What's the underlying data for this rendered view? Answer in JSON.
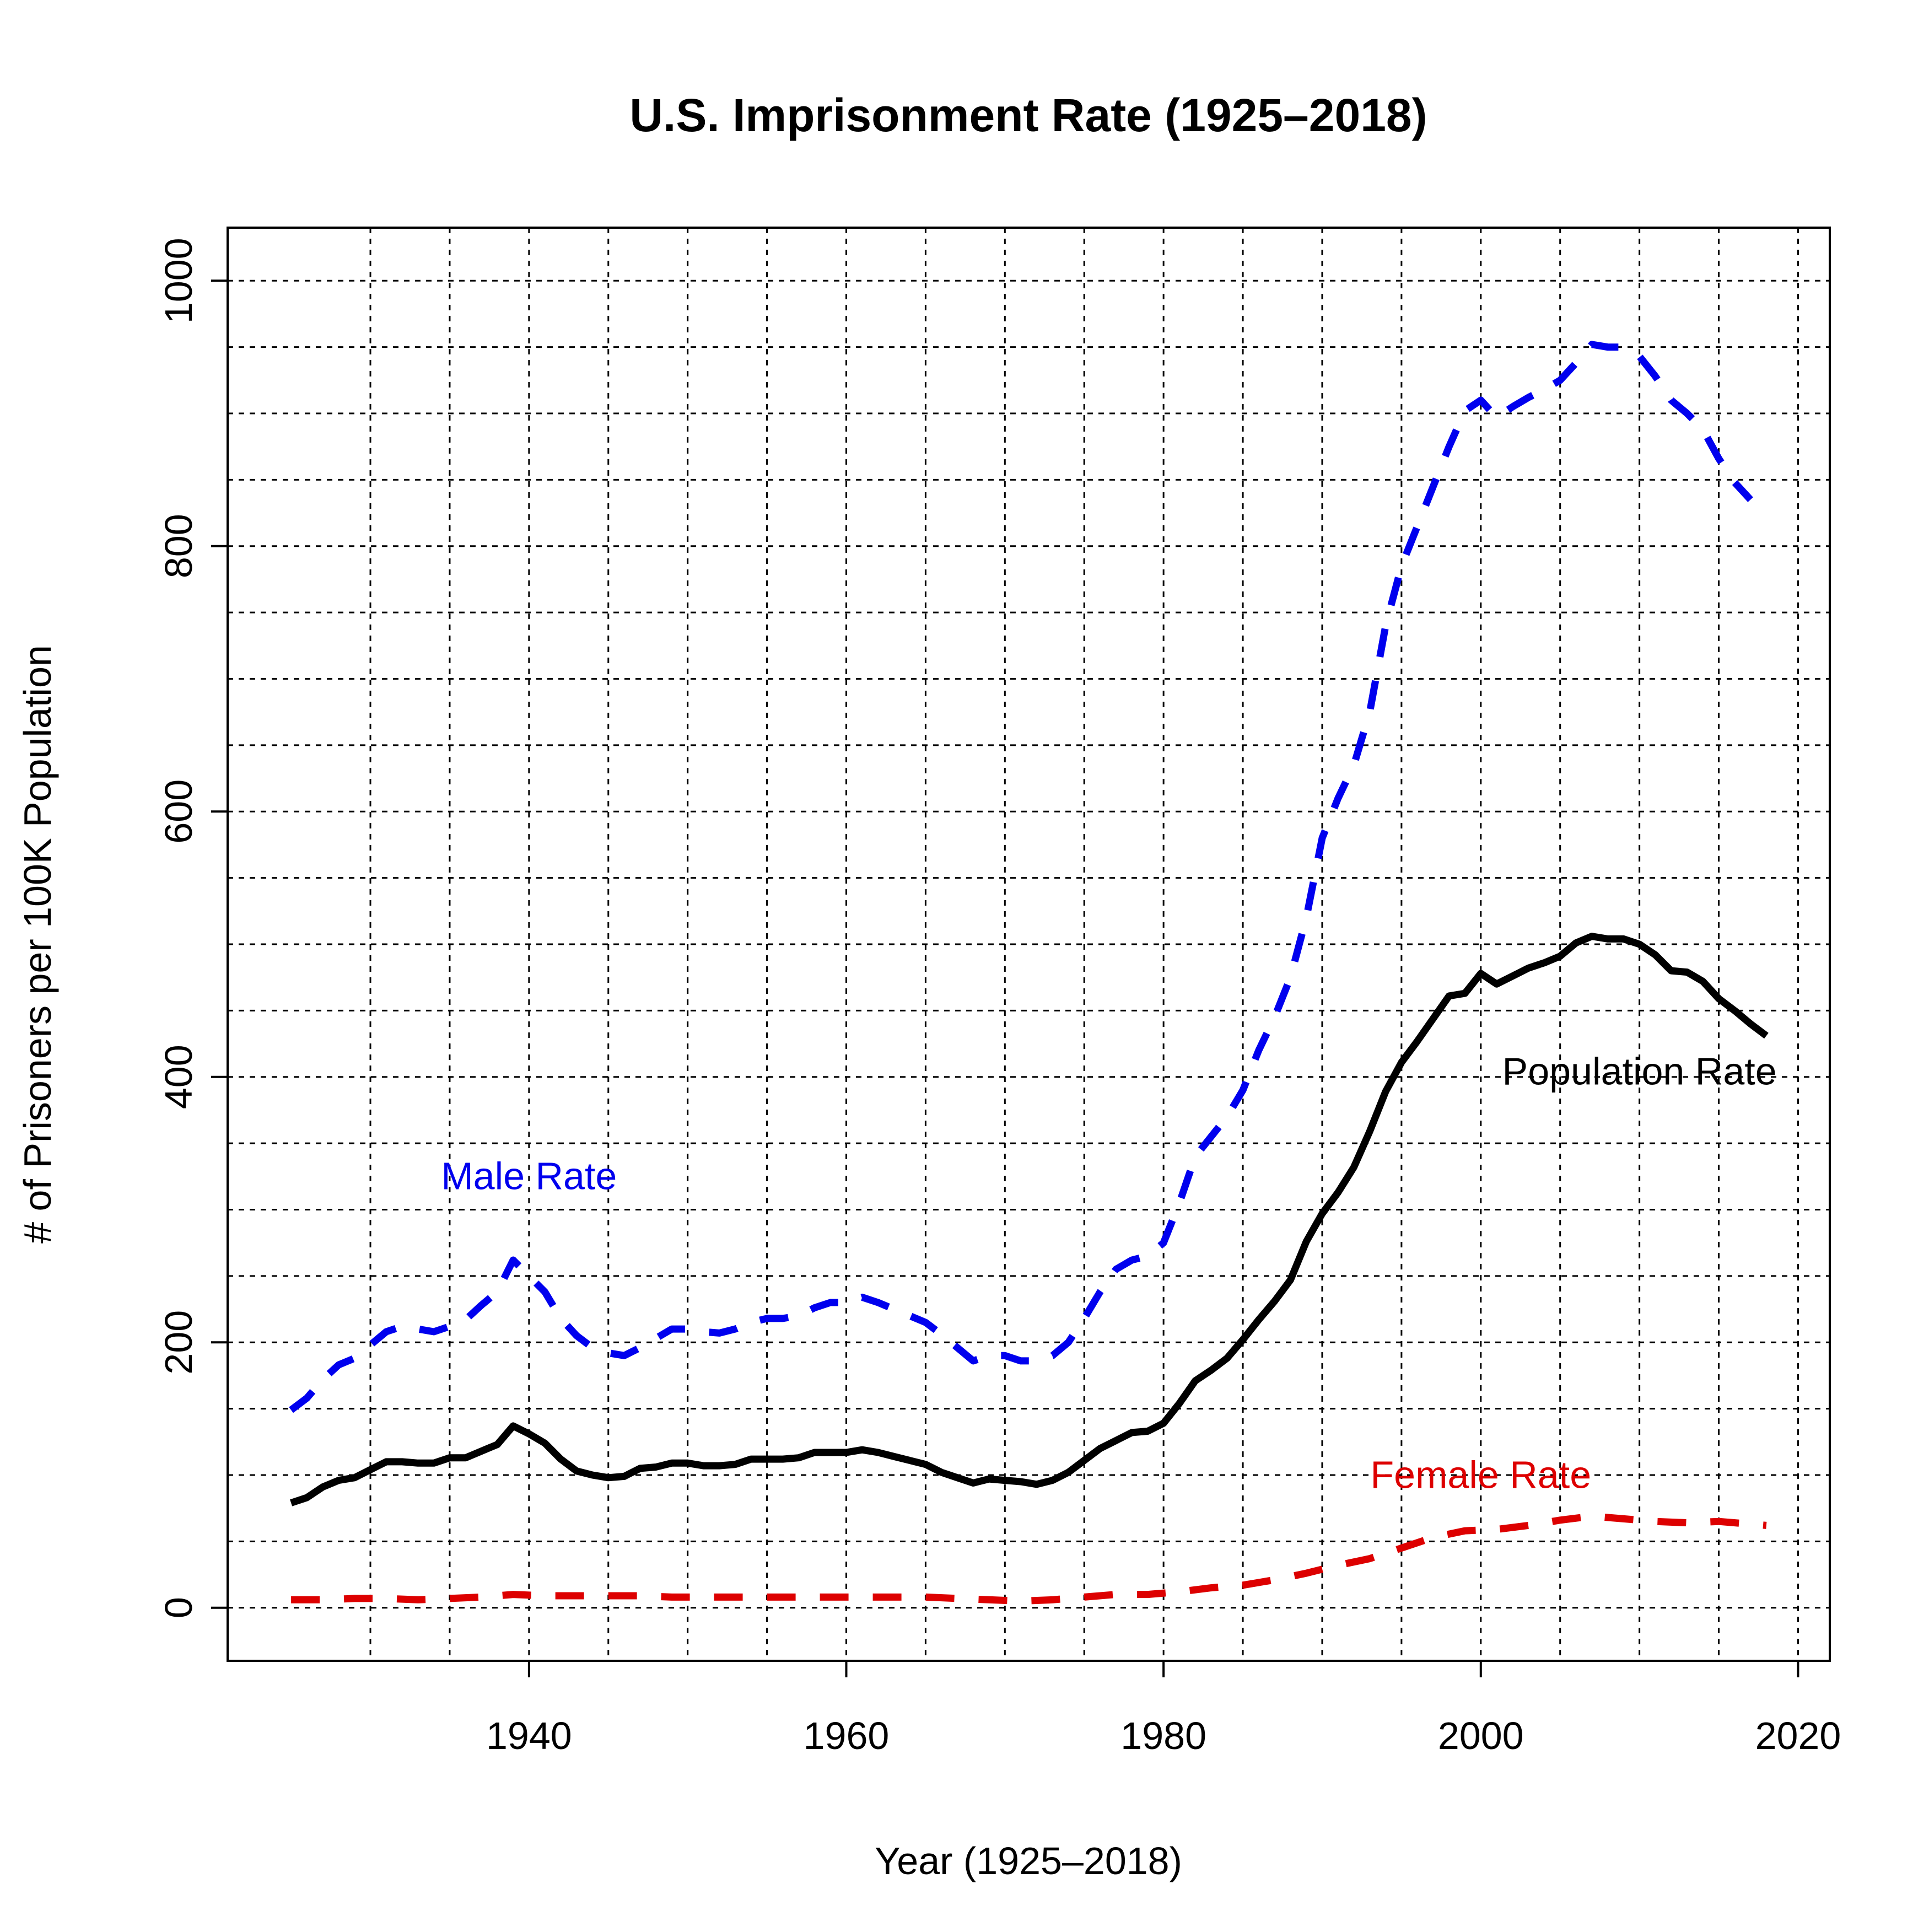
{
  "chart_data": {
    "type": "line",
    "title": "U.S. Imprisonment Rate (1925–2018)",
    "xlabel": "Year (1925–2018)",
    "ylabel": "# of Prisoners per 100K Population",
    "xlim": [
      1921,
      2022
    ],
    "ylim": [
      -40,
      1040
    ],
    "x_ticks": [
      1940,
      1960,
      1980,
      2000,
      2020
    ],
    "y_ticks": [
      0,
      200,
      400,
      600,
      800,
      1000
    ],
    "x_grid": [
      1930,
      1935,
      1940,
      1945,
      1950,
      1955,
      1960,
      1965,
      1970,
      1975,
      1980,
      1985,
      1990,
      1995,
      2000,
      2005,
      2010,
      2015,
      2020
    ],
    "y_grid": [
      0,
      50,
      100,
      150,
      200,
      250,
      300,
      350,
      400,
      450,
      500,
      550,
      600,
      650,
      700,
      750,
      800,
      850,
      900,
      950,
      1000
    ],
    "grid": true,
    "legend": "inline labels",
    "series": [
      {
        "name": "Male Rate",
        "color": "#0000ee",
        "style": "dashed",
        "label_position": [
          1940,
          323
        ],
        "points": [
          [
            1925,
            149
          ],
          [
            1926,
            158
          ],
          [
            1927,
            172
          ],
          [
            1928,
            183
          ],
          [
            1929,
            188
          ],
          [
            1930,
            198
          ],
          [
            1931,
            208
          ],
          [
            1932,
            212
          ],
          [
            1933,
            210
          ],
          [
            1934,
            208
          ],
          [
            1935,
            212
          ],
          [
            1936,
            217
          ],
          [
            1937,
            228
          ],
          [
            1938,
            238
          ],
          [
            1939,
            262
          ],
          [
            1940,
            250
          ],
          [
            1941,
            238
          ],
          [
            1942,
            218
          ],
          [
            1943,
            205
          ],
          [
            1944,
            196
          ],
          [
            1945,
            192
          ],
          [
            1946,
            190
          ],
          [
            1947,
            196
          ],
          [
            1948,
            203
          ],
          [
            1949,
            210
          ],
          [
            1950,
            210
          ],
          [
            1951,
            208
          ],
          [
            1952,
            207
          ],
          [
            1953,
            210
          ],
          [
            1954,
            215
          ],
          [
            1955,
            218
          ],
          [
            1956,
            218
          ],
          [
            1957,
            220
          ],
          [
            1958,
            226
          ],
          [
            1959,
            230
          ],
          [
            1960,
            230
          ],
          [
            1961,
            234
          ],
          [
            1962,
            230
          ],
          [
            1963,
            225
          ],
          [
            1964,
            220
          ],
          [
            1965,
            215
          ],
          [
            1966,
            206
          ],
          [
            1967,
            196
          ],
          [
            1968,
            186
          ],
          [
            1969,
            190
          ],
          [
            1970,
            190
          ],
          [
            1971,
            186
          ],
          [
            1972,
            186
          ],
          [
            1973,
            190
          ],
          [
            1974,
            200
          ],
          [
            1975,
            218
          ],
          [
            1976,
            238
          ],
          [
            1977,
            255
          ],
          [
            1978,
            262
          ],
          [
            1979,
            265
          ],
          [
            1980,
            275
          ],
          [
            1981,
            305
          ],
          [
            1982,
            340
          ],
          [
            1983,
            355
          ],
          [
            1984,
            370
          ],
          [
            1985,
            390
          ],
          [
            1986,
            420
          ],
          [
            1987,
            445
          ],
          [
            1988,
            475
          ],
          [
            1989,
            520
          ],
          [
            1990,
            580
          ],
          [
            1991,
            610
          ],
          [
            1992,
            635
          ],
          [
            1993,
            675
          ],
          [
            1994,
            740
          ],
          [
            1995,
            785
          ],
          [
            1996,
            815
          ],
          [
            1997,
            845
          ],
          [
            1998,
            875
          ],
          [
            1999,
            902
          ],
          [
            2000,
            910
          ],
          [
            2001,
            897
          ],
          [
            2002,
            905
          ],
          [
            2003,
            912
          ],
          [
            2004,
            918
          ],
          [
            2005,
            925
          ],
          [
            2006,
            938
          ],
          [
            2007,
            952
          ],
          [
            2008,
            950
          ],
          [
            2009,
            950
          ],
          [
            2010,
            943
          ],
          [
            2011,
            928
          ],
          [
            2012,
            910
          ],
          [
            2013,
            900
          ],
          [
            2014,
            888
          ],
          [
            2015,
            866
          ],
          [
            2016,
            848
          ],
          [
            2017,
            835
          ]
        ]
      },
      {
        "name": "Population Rate",
        "color": "#000000",
        "style": "solid",
        "label_position": [
          2010,
          402
        ],
        "points": [
          [
            1925,
            79
          ],
          [
            1926,
            83
          ],
          [
            1927,
            91
          ],
          [
            1928,
            96
          ],
          [
            1929,
            98
          ],
          [
            1930,
            104
          ],
          [
            1931,
            110
          ],
          [
            1932,
            110
          ],
          [
            1933,
            109
          ],
          [
            1934,
            109
          ],
          [
            1935,
            113
          ],
          [
            1936,
            113
          ],
          [
            1937,
            118
          ],
          [
            1938,
            123
          ],
          [
            1939,
            137
          ],
          [
            1940,
            131
          ],
          [
            1941,
            124
          ],
          [
            1942,
            112
          ],
          [
            1943,
            103
          ],
          [
            1944,
            100
          ],
          [
            1945,
            98
          ],
          [
            1946,
            99
          ],
          [
            1947,
            105
          ],
          [
            1948,
            106
          ],
          [
            1949,
            109
          ],
          [
            1950,
            109
          ],
          [
            1951,
            107
          ],
          [
            1952,
            107
          ],
          [
            1953,
            108
          ],
          [
            1954,
            112
          ],
          [
            1955,
            112
          ],
          [
            1956,
            112
          ],
          [
            1957,
            113
          ],
          [
            1958,
            117
          ],
          [
            1959,
            117
          ],
          [
            1960,
            117
          ],
          [
            1961,
            119
          ],
          [
            1962,
            117
          ],
          [
            1963,
            114
          ],
          [
            1964,
            111
          ],
          [
            1965,
            108
          ],
          [
            1966,
            102
          ],
          [
            1967,
            98
          ],
          [
            1968,
            94
          ],
          [
            1969,
            97
          ],
          [
            1970,
            96
          ],
          [
            1971,
            95
          ],
          [
            1972,
            93
          ],
          [
            1973,
            96
          ],
          [
            1974,
            102
          ],
          [
            1975,
            111
          ],
          [
            1976,
            120
          ],
          [
            1977,
            126
          ],
          [
            1978,
            132
          ],
          [
            1979,
            133
          ],
          [
            1980,
            139
          ],
          [
            1981,
            154
          ],
          [
            1982,
            171
          ],
          [
            1983,
            179
          ],
          [
            1984,
            188
          ],
          [
            1985,
            202
          ],
          [
            1986,
            217
          ],
          [
            1987,
            231
          ],
          [
            1988,
            247
          ],
          [
            1989,
            276
          ],
          [
            1990,
            297
          ],
          [
            1991,
            313
          ],
          [
            1992,
            332
          ],
          [
            1993,
            359
          ],
          [
            1994,
            389
          ],
          [
            1995,
            411
          ],
          [
            1996,
            427
          ],
          [
            1997,
            444
          ],
          [
            1998,
            461
          ],
          [
            1999,
            463
          ],
          [
            2000,
            478
          ],
          [
            2001,
            470
          ],
          [
            2002,
            476
          ],
          [
            2003,
            482
          ],
          [
            2004,
            486
          ],
          [
            2005,
            491
          ],
          [
            2006,
            501
          ],
          [
            2007,
            506
          ],
          [
            2008,
            504
          ],
          [
            2009,
            504
          ],
          [
            2010,
            500
          ],
          [
            2011,
            492
          ],
          [
            2012,
            480
          ],
          [
            2013,
            479
          ],
          [
            2014,
            472
          ],
          [
            2015,
            459
          ],
          [
            2016,
            450
          ],
          [
            2017,
            440
          ],
          [
            2018,
            431
          ]
        ]
      },
      {
        "name": "Female Rate",
        "color": "#dd0000",
        "style": "dashed",
        "label_position": [
          2000,
          98
        ],
        "points": [
          [
            1925,
            6
          ],
          [
            1927,
            6
          ],
          [
            1929,
            7
          ],
          [
            1931,
            7
          ],
          [
            1933,
            6
          ],
          [
            1935,
            7
          ],
          [
            1937,
            8
          ],
          [
            1939,
            10
          ],
          [
            1941,
            9
          ],
          [
            1943,
            9
          ],
          [
            1945,
            9
          ],
          [
            1947,
            9
          ],
          [
            1949,
            8
          ],
          [
            1951,
            8
          ],
          [
            1953,
            8
          ],
          [
            1955,
            8
          ],
          [
            1957,
            8
          ],
          [
            1959,
            8
          ],
          [
            1961,
            8
          ],
          [
            1963,
            8
          ],
          [
            1965,
            8
          ],
          [
            1967,
            7
          ],
          [
            1969,
            6
          ],
          [
            1971,
            5
          ],
          [
            1973,
            6
          ],
          [
            1975,
            8
          ],
          [
            1977,
            10
          ],
          [
            1979,
            10
          ],
          [
            1981,
            12
          ],
          [
            1983,
            15
          ],
          [
            1985,
            17
          ],
          [
            1987,
            21
          ],
          [
            1989,
            26
          ],
          [
            1991,
            32
          ],
          [
            1993,
            37
          ],
          [
            1995,
            45
          ],
          [
            1997,
            53
          ],
          [
            1999,
            58
          ],
          [
            2001,
            59
          ],
          [
            2003,
            62
          ],
          [
            2005,
            66
          ],
          [
            2007,
            69
          ],
          [
            2009,
            67
          ],
          [
            2011,
            65
          ],
          [
            2013,
            64
          ],
          [
            2015,
            65
          ],
          [
            2017,
            63
          ],
          [
            2018,
            62
          ]
        ]
      }
    ]
  }
}
